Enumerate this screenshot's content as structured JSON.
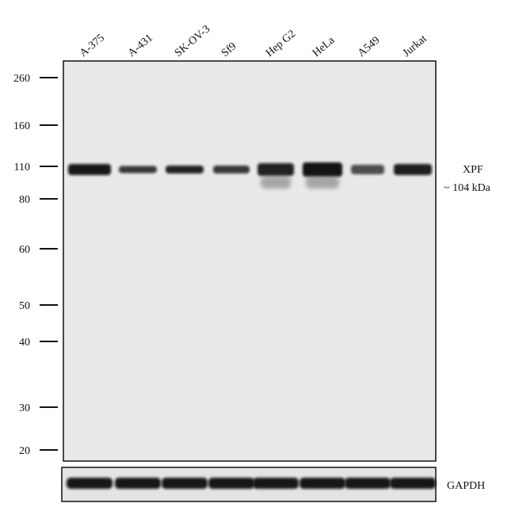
{
  "lanes": [
    "A-375",
    "A-431",
    "SK-OV-3",
    "Sf9",
    "Hep G2",
    "HeLa",
    "A549",
    "Jurkat"
  ],
  "markers": [
    "260",
    "160",
    "110",
    "80",
    "60",
    "50",
    "40",
    "30",
    "20"
  ],
  "target": {
    "name": "XPF",
    "size": "~ 104 kDa"
  },
  "control": {
    "name": "GAPDH"
  }
}
